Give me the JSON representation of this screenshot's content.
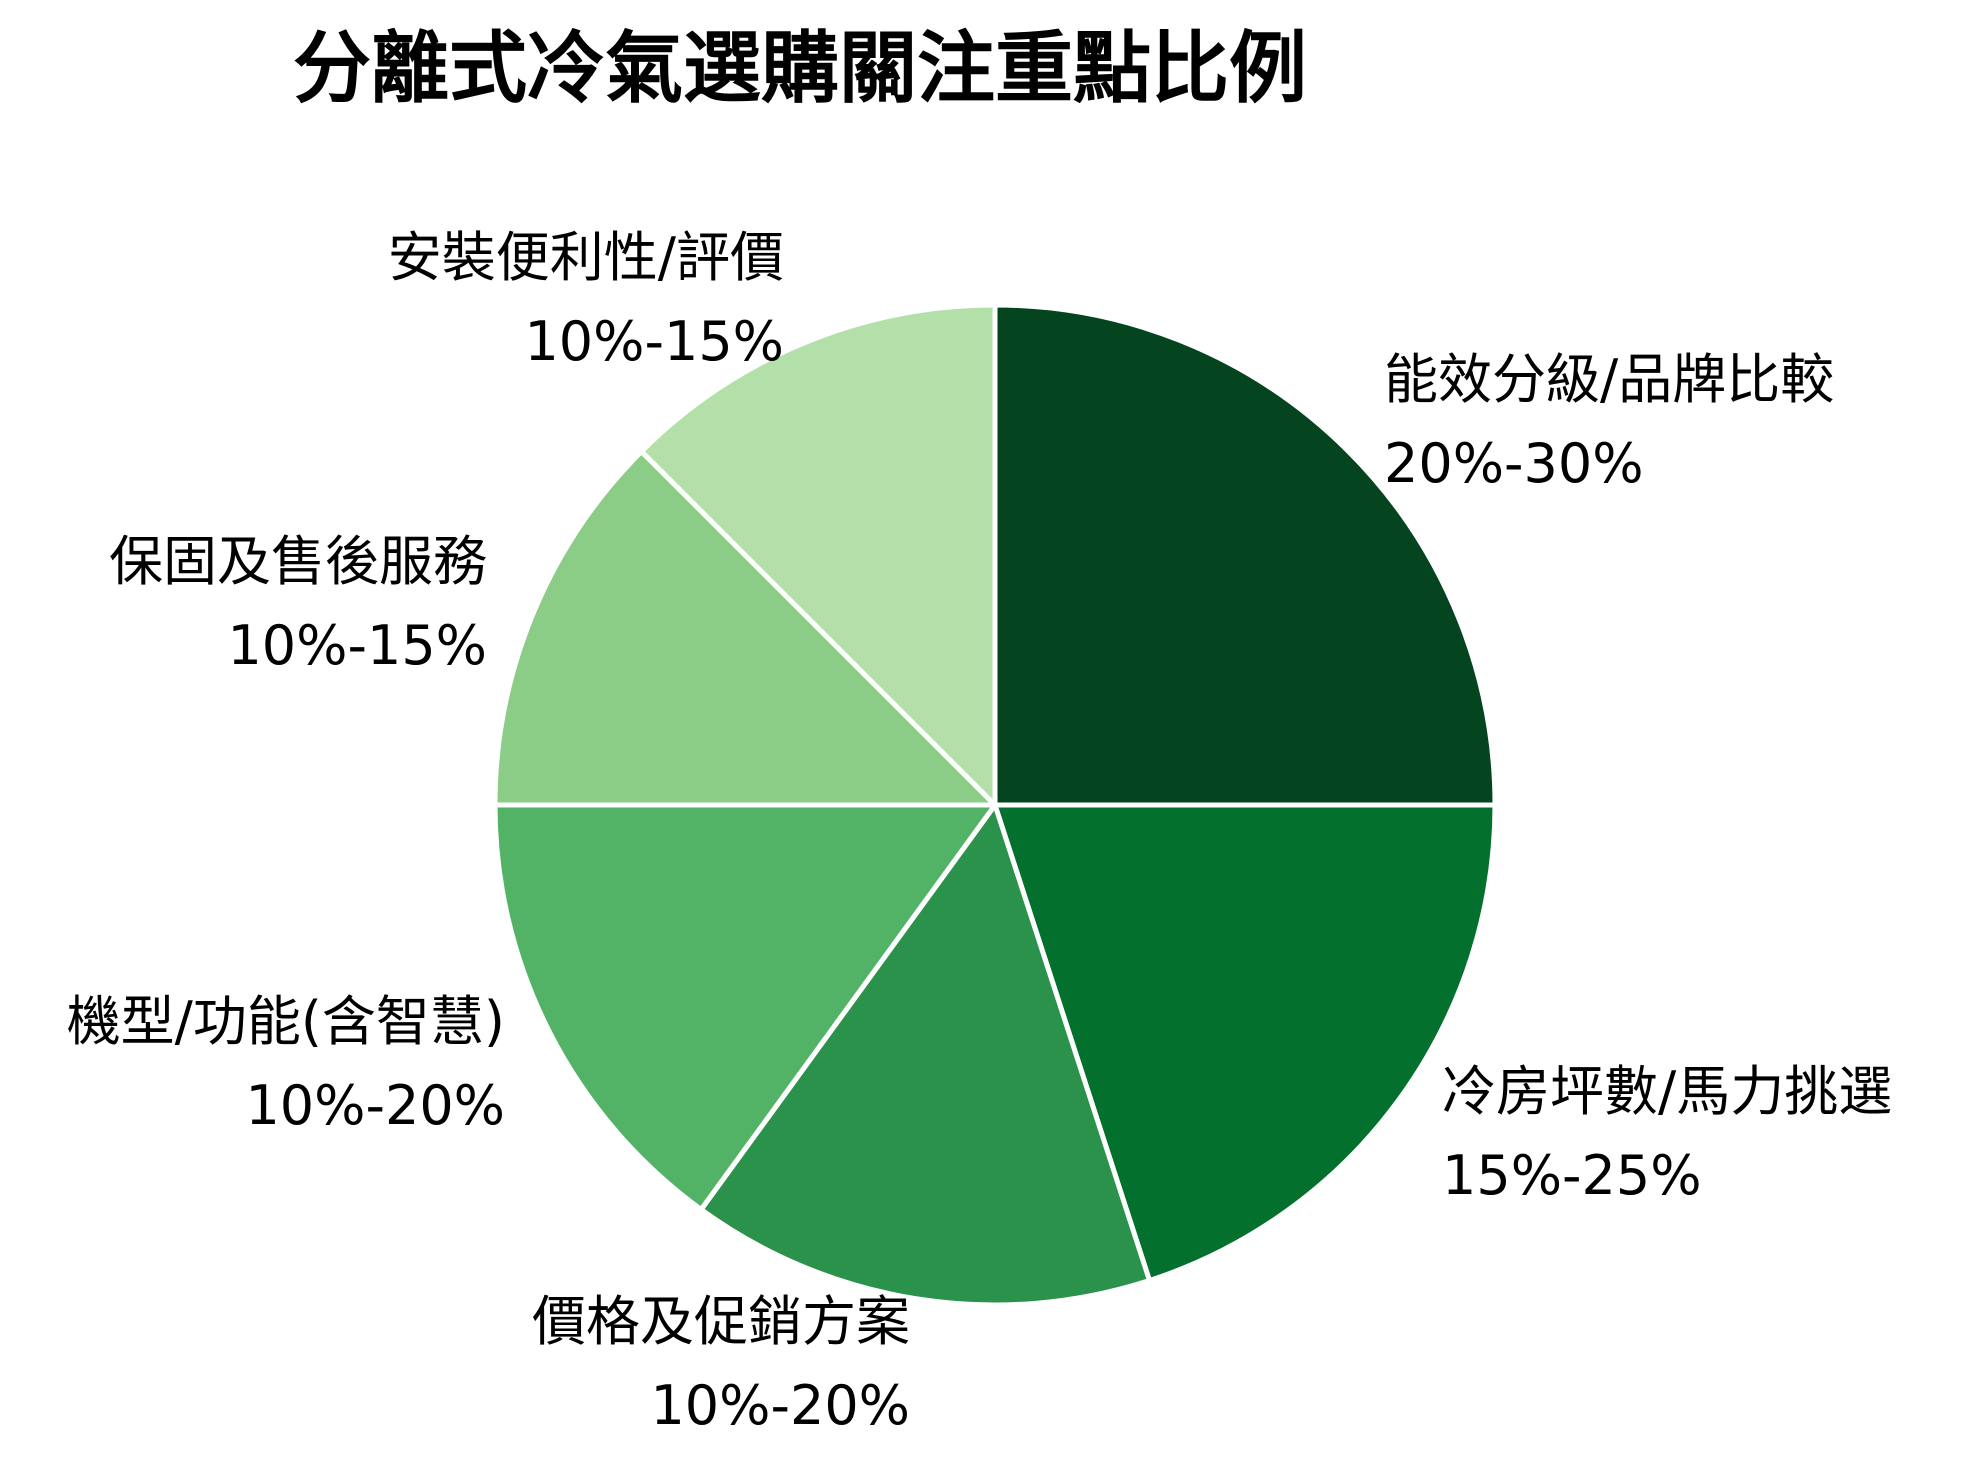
{
  "title": "分離式冷氣選購關注重點比例",
  "text_color": "#000000",
  "background_color": "#ffffff",
  "chart_data": {
    "type": "pie",
    "title": "分離式冷氣選購關注重點比例",
    "legend": "none",
    "start_angle": "12-o'clock, clockwise",
    "slice_border_color": "#ffffff",
    "slices": [
      {
        "label": "能效分級/品牌比較",
        "range_label": "20%-30%",
        "value": 25,
        "color": "#04441E"
      },
      {
        "label": "冷房坪數/馬力挑選",
        "range_label": "15%-25%",
        "value": 20,
        "color": "#04702E"
      },
      {
        "label": "價格及促銷方案",
        "range_label": "10%-20%",
        "value": 15,
        "color": "#2B924C"
      },
      {
        "label": "機型/功能(含智慧)",
        "range_label": "10%-20%",
        "value": 15,
        "color": "#52B266"
      },
      {
        "label": "保固及售後服務",
        "range_label": "10%-15%",
        "value": 12.5,
        "color": "#8BCC87"
      },
      {
        "label": "安裝便利性/評價",
        "range_label": "10%-15%",
        "value": 12.5,
        "color": "#B3DFA9"
      }
    ]
  }
}
